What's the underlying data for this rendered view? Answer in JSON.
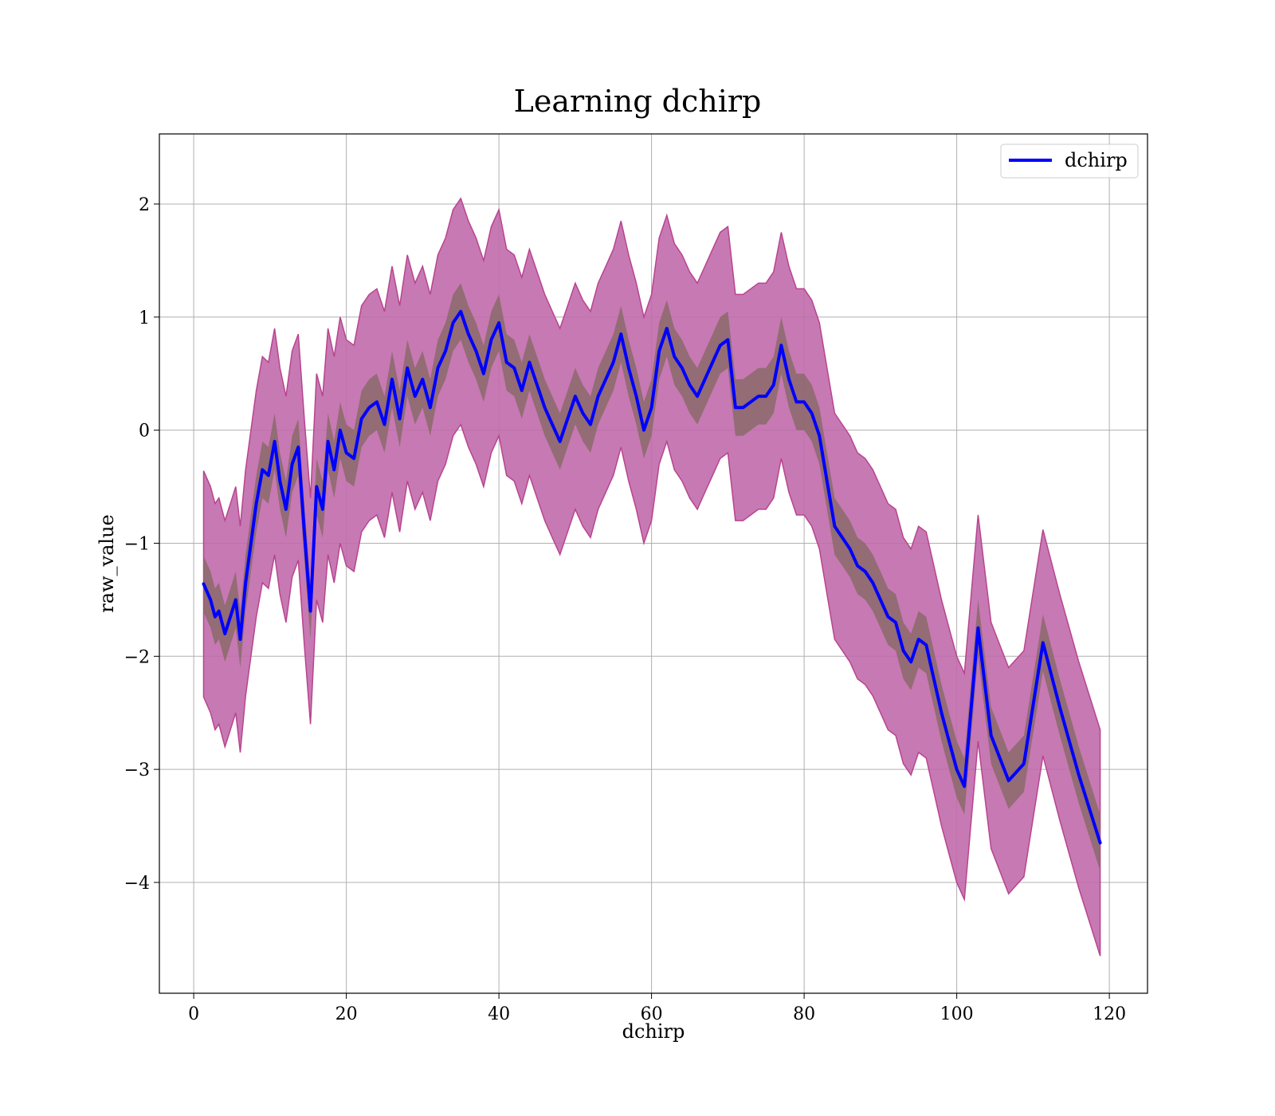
{
  "chart_data": {
    "type": "line",
    "title": "Learning dchirp",
    "xlabel": "dchirp",
    "ylabel": "raw_value",
    "xlim": [
      -4.5,
      125
    ],
    "ylim": [
      -4.98,
      2.62
    ],
    "xticks": [
      0,
      20,
      40,
      60,
      80,
      100,
      120
    ],
    "yticks": [
      -4,
      -3,
      -2,
      -1,
      0,
      1,
      2
    ],
    "grid": true,
    "legend": "top-right",
    "colors": {
      "line": "#0000ff",
      "outer_band": "#c16aab",
      "outer_band_edge": "#b8448f",
      "inner_band": "#8a6a6a"
    },
    "series": [
      {
        "name": "dchirp",
        "x": [
          1.3,
          2.2,
          2.8,
          3.3,
          4.1,
          4.8,
          5.5,
          6.1,
          6.8,
          7.5,
          8.2,
          9.0,
          9.8,
          10.6,
          11.3,
          12.1,
          12.9,
          13.7,
          14.5,
          15.3,
          16.1,
          16.9,
          17.6,
          18.4,
          19.2,
          20.0,
          21.0,
          22.0,
          23.0,
          24.0,
          25.0,
          26.0,
          27.0,
          28.0,
          29.0,
          30.0,
          31.0,
          32.0,
          33.0,
          34.0,
          35.0,
          36.0,
          37.0,
          38.0,
          39.0,
          40.0,
          41.0,
          42.0,
          43.0,
          44.0,
          45.0,
          46.0,
          47.0,
          48.0,
          49.0,
          50.0,
          51.0,
          52.0,
          53.0,
          54.0,
          55.0,
          56.0,
          57.0,
          58.0,
          59.0,
          60.0,
          61.0,
          62.0,
          63.0,
          64.0,
          65.0,
          66.0,
          67.0,
          68.0,
          69.0,
          70.0,
          71.0,
          72.0,
          73.0,
          74.0,
          75.0,
          76.0,
          77.0,
          78.0,
          79.0,
          80.0,
          81.0,
          82.0,
          83.0,
          84.0,
          85.0,
          86.0,
          87.0,
          88.0,
          89.0,
          90.0,
          91.0,
          92.0,
          93.0,
          94.0,
          95.0,
          96.0,
          97.0,
          98.0,
          99.0,
          100.0,
          101.0,
          102.8,
          104.5,
          106.8,
          108.8,
          111.3,
          113.5,
          116.0,
          118.8
        ],
        "y": [
          -1.36,
          -1.5,
          -1.65,
          -1.6,
          -1.8,
          -1.65,
          -1.5,
          -1.85,
          -1.35,
          -1.0,
          -0.65,
          -0.35,
          -0.4,
          -0.1,
          -0.45,
          -0.7,
          -0.3,
          -0.15,
          -0.9,
          -1.6,
          -0.5,
          -0.7,
          -0.1,
          -0.35,
          0.0,
          -0.2,
          -0.25,
          0.1,
          0.2,
          0.25,
          0.05,
          0.45,
          0.1,
          0.55,
          0.3,
          0.45,
          0.2,
          0.55,
          0.7,
          0.95,
          1.05,
          0.85,
          0.7,
          0.5,
          0.8,
          0.95,
          0.6,
          0.55,
          0.35,
          0.6,
          0.4,
          0.2,
          0.05,
          -0.1,
          0.1,
          0.3,
          0.15,
          0.05,
          0.3,
          0.45,
          0.6,
          0.85,
          0.55,
          0.3,
          0.0,
          0.2,
          0.7,
          0.9,
          0.65,
          0.55,
          0.4,
          0.3,
          0.45,
          0.6,
          0.75,
          0.8,
          0.2,
          0.2,
          0.25,
          0.3,
          0.3,
          0.4,
          0.75,
          0.45,
          0.25,
          0.25,
          0.15,
          -0.05,
          -0.45,
          -0.85,
          -0.95,
          -1.05,
          -1.2,
          -1.25,
          -1.35,
          -1.5,
          -1.65,
          -1.7,
          -1.95,
          -2.05,
          -1.85,
          -1.9,
          -2.2,
          -2.5,
          -2.75,
          -3.0,
          -3.15,
          -1.75,
          -2.7,
          -3.1,
          -2.95,
          -1.88,
          -2.45,
          -3.05,
          -3.65
        ],
        "band_outer_half_width": [
          1.0,
          1.0,
          1.0,
          1.0,
          1.0,
          1.0,
          1.0,
          1.0,
          1.0,
          1.0,
          1.0,
          1.0,
          1.0,
          1.0,
          1.0,
          1.0,
          1.0,
          1.0,
          1.0,
          1.0,
          1.0,
          1.0,
          1.0,
          1.0,
          1.0,
          1.0,
          1.0,
          1.0,
          1.0,
          1.0,
          1.0,
          1.0,
          1.0,
          1.0,
          1.0,
          1.0,
          1.0,
          1.0,
          1.0,
          1.0,
          1.0,
          1.0,
          1.0,
          1.0,
          1.0,
          1.0,
          1.0,
          1.0,
          1.0,
          1.0,
          1.0,
          1.0,
          1.0,
          1.0,
          1.0,
          1.0,
          1.0,
          1.0,
          1.0,
          1.0,
          1.0,
          1.0,
          1.0,
          1.0,
          1.0,
          1.0,
          1.0,
          1.0,
          1.0,
          1.0,
          1.0,
          1.0,
          1.0,
          1.0,
          1.0,
          1.0,
          1.0,
          1.0,
          1.0,
          1.0,
          1.0,
          1.0,
          1.0,
          1.0,
          1.0,
          1.0,
          1.0,
          1.0,
          1.0,
          1.0,
          1.0,
          1.0,
          1.0,
          1.0,
          1.0,
          1.0,
          1.0,
          1.0,
          1.0,
          1.0,
          1.0,
          1.0,
          1.0,
          1.0,
          1.0,
          1.0,
          1.0,
          1.0,
          1.0,
          1.0,
          1.0,
          1.0,
          1.0,
          1.0,
          1.0
        ],
        "band_inner_half_width": [
          0.25,
          0.25,
          0.25,
          0.25,
          0.25,
          0.25,
          0.25,
          0.25,
          0.25,
          0.25,
          0.25,
          0.25,
          0.25,
          0.25,
          0.25,
          0.25,
          0.25,
          0.25,
          0.25,
          0.25,
          0.25,
          0.25,
          0.25,
          0.25,
          0.25,
          0.25,
          0.25,
          0.25,
          0.25,
          0.25,
          0.25,
          0.25,
          0.25,
          0.25,
          0.25,
          0.25,
          0.25,
          0.25,
          0.25,
          0.25,
          0.25,
          0.25,
          0.25,
          0.25,
          0.25,
          0.25,
          0.25,
          0.25,
          0.25,
          0.25,
          0.25,
          0.25,
          0.25,
          0.25,
          0.25,
          0.25,
          0.25,
          0.25,
          0.25,
          0.25,
          0.25,
          0.25,
          0.25,
          0.25,
          0.25,
          0.25,
          0.25,
          0.25,
          0.25,
          0.25,
          0.25,
          0.25,
          0.25,
          0.25,
          0.25,
          0.25,
          0.25,
          0.25,
          0.25,
          0.25,
          0.25,
          0.25,
          0.25,
          0.25,
          0.25,
          0.25,
          0.25,
          0.25,
          0.25,
          0.25,
          0.25,
          0.25,
          0.25,
          0.25,
          0.25,
          0.25,
          0.25,
          0.25,
          0.25,
          0.25,
          0.25,
          0.25,
          0.25,
          0.25,
          0.25,
          0.25,
          0.25,
          0.25,
          0.25,
          0.25,
          0.25,
          0.25,
          0.25,
          0.25,
          0.25
        ]
      }
    ]
  }
}
